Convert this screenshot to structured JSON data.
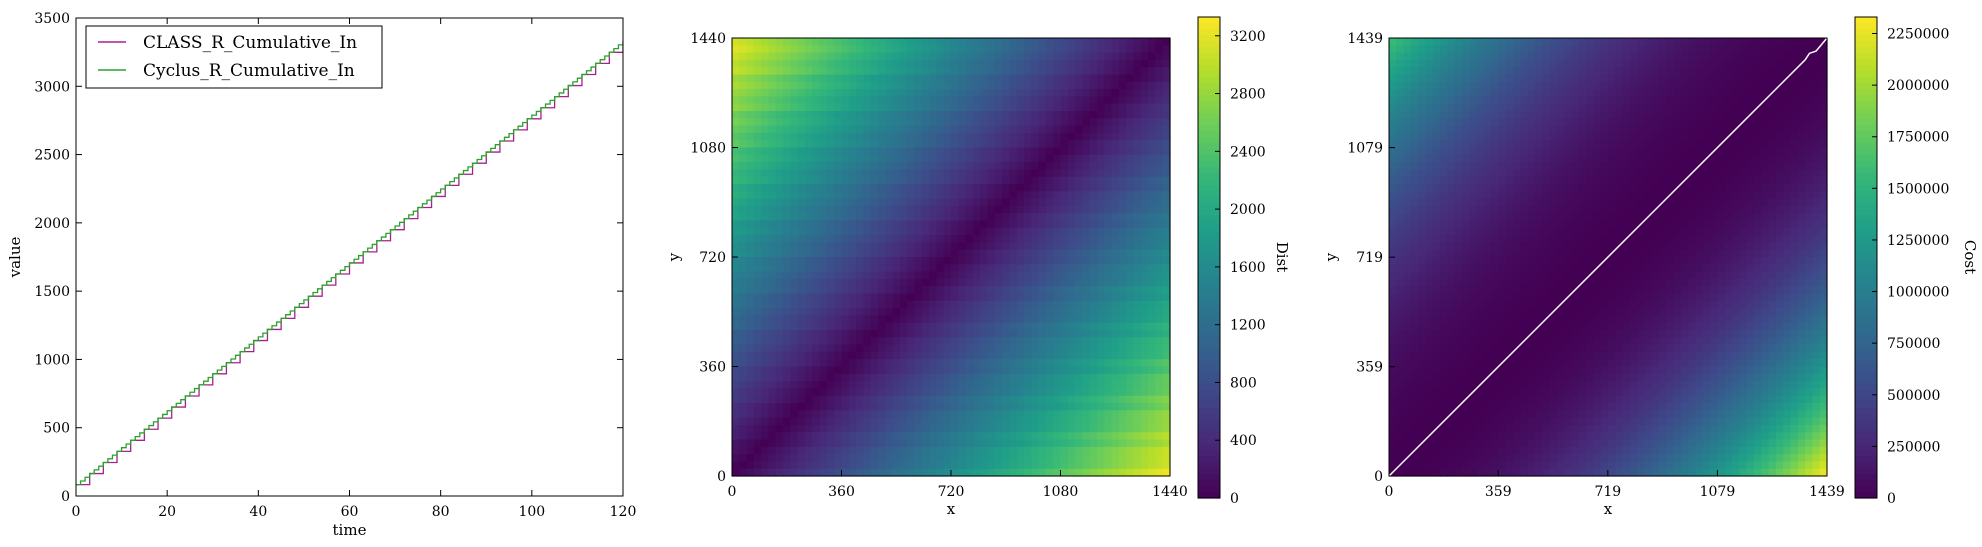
{
  "chart_data": [
    {
      "type": "line",
      "xlabel": "time",
      "ylabel": "value",
      "xlim": [
        0,
        120
      ],
      "ylim": [
        0,
        3500
      ],
      "xticks": [
        "0",
        "20",
        "40",
        "60",
        "80",
        "100",
        "120"
      ],
      "yticks": [
        "0",
        "500",
        "1000",
        "1500",
        "2000",
        "2500",
        "3000",
        "3500"
      ],
      "legend_position": "top-left",
      "series": [
        {
          "name": "CLASS_R_Cumulative_In",
          "color": "#a6218f",
          "style": "step",
          "step_every": 3,
          "x_start": 0,
          "y_start": 83,
          "x_end": 120,
          "y_end": 3330
        },
        {
          "name": "Cyclus_R_Cumulative_In",
          "color": "#2ca02c",
          "style": "step",
          "step_every": 1,
          "x_start": 0,
          "y_start": 83,
          "x_end": 120,
          "y_end": 3330
        }
      ]
    },
    {
      "type": "heatmap",
      "xlabel": "x",
      "ylabel": "y",
      "xticks": [
        "0",
        "360",
        "720",
        "1080",
        "1440"
      ],
      "yticks": [
        "0",
        "360",
        "720",
        "1080",
        "1440"
      ],
      "xlim": [
        0,
        1440
      ],
      "ylim": [
        0,
        1440
      ],
      "colormap": "viridis",
      "colorbar": {
        "label": "Dist",
        "min": 0,
        "max": 3330,
        "ticks": [
          "0",
          "400",
          "800",
          "1200",
          "1600",
          "2000",
          "2400",
          "2800",
          "3200"
        ]
      },
      "pattern": "distance grows away from the diagonal y = x; maxima at top-left and bottom-right corners"
    },
    {
      "type": "heatmap",
      "xlabel": "x",
      "ylabel": "y",
      "xticks": [
        "0",
        "359",
        "719",
        "1079",
        "1439"
      ],
      "yticks": [
        "0",
        "359",
        "719",
        "1079",
        "1439"
      ],
      "xlim": [
        0,
        1439
      ],
      "ylim": [
        0,
        1439
      ],
      "colormap": "viridis",
      "colorbar": {
        "label": "Cost",
        "min": 0,
        "max": 2330000,
        "ticks": [
          "0",
          "250000",
          "500000",
          "750000",
          "1000000",
          "1250000",
          "1500000",
          "1750000",
          "2000000",
          "2250000"
        ]
      },
      "path_color": "#ffffff",
      "path_description": "warping path follows the diagonal from (0,0) to (1439,1439)",
      "pattern": "cost near zero along the diagonal; grows toward the top-left and bottom-right corners, maximum at bottom-right"
    }
  ]
}
